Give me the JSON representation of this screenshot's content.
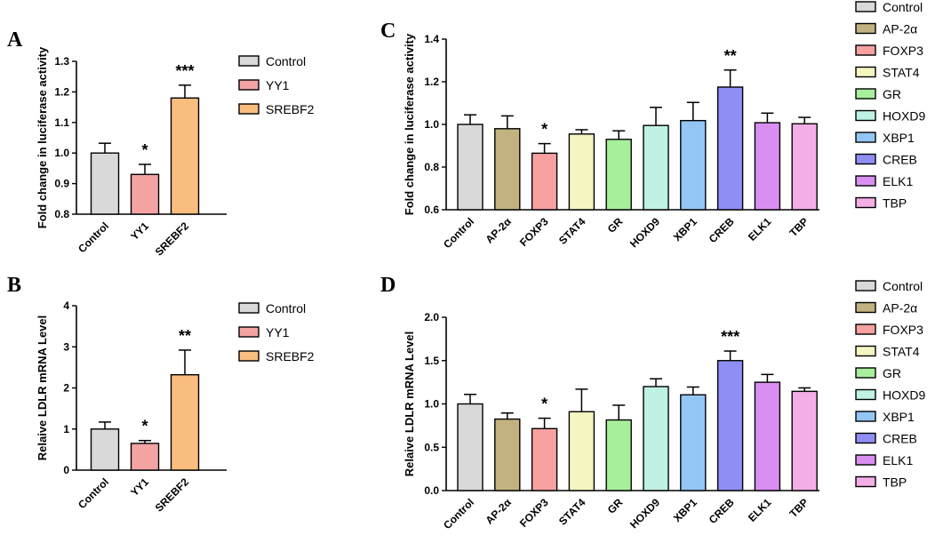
{
  "chart_data": [
    {
      "id": "A",
      "panel_label": "A",
      "type": "bar",
      "ylabel": "Fold change in luciferase activity",
      "ylim": [
        0.8,
        1.3
      ],
      "yticks": [
        "0.8",
        "0.9",
        "1.0",
        "1.1",
        "1.2",
        "1.3"
      ],
      "ytick_values": [
        0.8,
        0.9,
        1.0,
        1.1,
        1.2,
        1.3
      ],
      "categories": [
        "Control",
        "YY1",
        "SREBF2"
      ],
      "values": [
        1.0,
        0.93,
        1.18
      ],
      "errors": [
        0.032,
        0.033,
        0.042
      ],
      "colors": [
        "#d9d9d9",
        "#f4a3a3",
        "#f9bd7f"
      ],
      "significance": [
        "",
        "*",
        "***"
      ],
      "legend": [
        "Control",
        "YY1",
        "SREBF2"
      ]
    },
    {
      "id": "B",
      "panel_label": "B",
      "type": "bar",
      "ylabel": "Relaive LDLR mRNA Level",
      "ylim": [
        0,
        4
      ],
      "yticks": [
        "0",
        "1",
        "2",
        "3",
        "4"
      ],
      "ytick_values": [
        0,
        1,
        2,
        3,
        4
      ],
      "categories": [
        "Control",
        "YY1",
        "SREBF2"
      ],
      "values": [
        1.0,
        0.65,
        2.32
      ],
      "errors": [
        0.17,
        0.07,
        0.6
      ],
      "colors": [
        "#d9d9d9",
        "#f4a3a3",
        "#f9bd7f"
      ],
      "significance": [
        "",
        "*",
        "**"
      ],
      "legend": [
        "Control",
        "YY1",
        "SREBF2"
      ]
    },
    {
      "id": "C",
      "panel_label": "C",
      "type": "bar",
      "ylabel": "Fold change in luciferase activity",
      "ylim": [
        0.6,
        1.4
      ],
      "yticks": [
        "0.6",
        "0.8",
        "1.0",
        "1.2",
        "1.4"
      ],
      "ytick_values": [
        0.6,
        0.8,
        1.0,
        1.2,
        1.4
      ],
      "categories": [
        "Control",
        "AP-2α",
        "FOXP3",
        "STAT4",
        "GR",
        "HOXD9",
        "XBP1",
        "CREB",
        "ELK1",
        "TBP"
      ],
      "values": [
        1.0,
        0.98,
        0.865,
        0.955,
        0.93,
        0.995,
        1.018,
        1.175,
        1.008,
        1.003
      ],
      "errors": [
        0.045,
        0.06,
        0.045,
        0.02,
        0.04,
        0.085,
        0.085,
        0.08,
        0.045,
        0.03
      ],
      "colors": [
        "#d9d9d9",
        "#c2b280",
        "#f7a1a1",
        "#f4f5c0",
        "#a8ef9c",
        "#bff2e4",
        "#93c6f5",
        "#8f8ef5",
        "#d98ff2",
        "#f3aee5"
      ],
      "significance": [
        "",
        "",
        "*",
        "",
        "",
        "",
        "",
        "**",
        "",
        ""
      ],
      "legend": [
        "Control",
        "AP-2α",
        "FOXP3",
        "STAT4",
        "GR",
        "HOXD9",
        "XBP1",
        "CREB",
        "ELK1",
        "TBP"
      ]
    },
    {
      "id": "D",
      "panel_label": "D",
      "type": "bar",
      "ylabel": "Relaive LDLR mRNA Level",
      "ylim": [
        0,
        2.0
      ],
      "yticks": [
        "0.0",
        "0.5",
        "1.0",
        "1.5",
        "2.0"
      ],
      "ytick_values": [
        0,
        0.5,
        1.0,
        1.5,
        2.0
      ],
      "categories": [
        "Control",
        "AP-2α",
        "FOXP3",
        "STAT4",
        "GR",
        "HOXD9",
        "XBP1",
        "CREB",
        "ELK1",
        "TBP"
      ],
      "values": [
        1.0,
        0.825,
        0.715,
        0.91,
        0.815,
        1.2,
        1.105,
        1.5,
        1.25,
        1.145
      ],
      "errors": [
        0.11,
        0.07,
        0.12,
        0.26,
        0.17,
        0.09,
        0.09,
        0.11,
        0.09,
        0.04
      ],
      "colors": [
        "#d9d9d9",
        "#c2b280",
        "#f7a1a1",
        "#f4f5c0",
        "#a8ef9c",
        "#bff2e4",
        "#93c6f5",
        "#8f8ef5",
        "#d98ff2",
        "#f3aee5"
      ],
      "significance": [
        "",
        "",
        "*",
        "",
        "",
        "",
        "",
        "***",
        "",
        ""
      ],
      "legend": [
        "Control",
        "AP-2α",
        "FOXP3",
        "STAT4",
        "GR",
        "HOXD9",
        "XBP1",
        "CREB",
        "ELK1",
        "TBP"
      ]
    }
  ]
}
